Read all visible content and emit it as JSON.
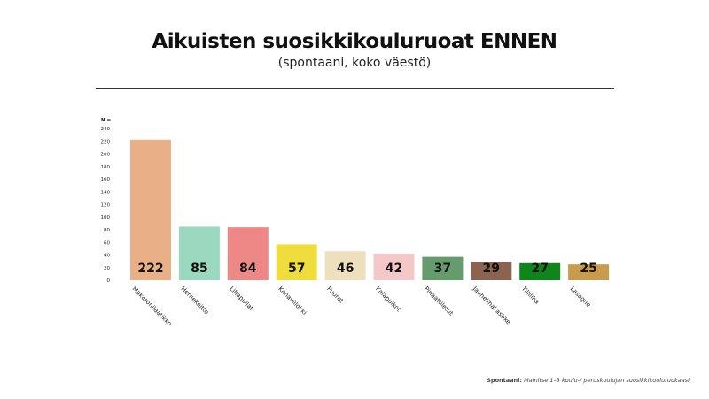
{
  "header": {
    "title": "Aikuisten suosikkikouluruoat ENNEN",
    "subtitle": "(spontaani, koko väestö)"
  },
  "footnote": {
    "label": "Spontaani:",
    "text": "Mainitse 1–3 koulu-/ peruskoulujan suosikkikouluruokaasi."
  },
  "chart_data": {
    "type": "bar",
    "title": "Aikuisten suosikkikouluruoat ENNEN",
    "subtitle": "(spontaani, koko väestö)",
    "ylabel": "N =",
    "ylim": [
      0,
      240
    ],
    "yticks": [
      0,
      20,
      40,
      60,
      80,
      100,
      120,
      140,
      160,
      180,
      200,
      220,
      240
    ],
    "grid": false,
    "categories": [
      "Makaronilaatikko",
      "Hernekeitto",
      "Lihapullat",
      "Kanaviilokki",
      "Puurot",
      "Kalapuikot",
      "Pinaattiletut",
      "Jauhelihakastike",
      "Tilliliha",
      "Lasagne"
    ],
    "values": [
      222,
      85,
      84,
      57,
      46,
      42,
      37,
      29,
      27,
      25
    ],
    "colors": [
      "#e9b087",
      "#9ad8bf",
      "#ed8886",
      "#efdc3d",
      "#efe0bd",
      "#f4c8c8",
      "#649c6e",
      "#8a6450",
      "#0f861b",
      "#c99b4a"
    ],
    "label_colors": [
      "#111111",
      "#111111",
      "#111111",
      "#111111",
      "#111111",
      "#111111",
      "#111111",
      "#111111",
      "#111111",
      "#111111"
    ]
  }
}
